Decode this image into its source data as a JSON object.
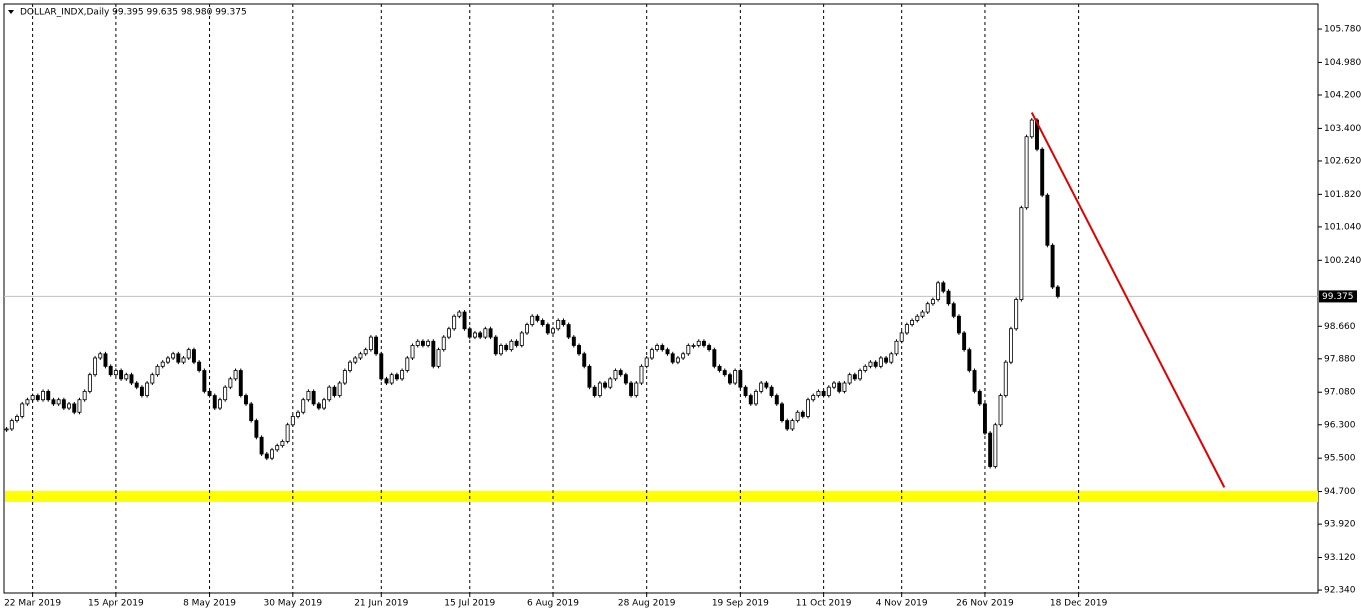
{
  "chart_data": {
    "type": "candlestick",
    "title": "DOLLAR_INDX,Daily  99.395 99.635 98.980 99.375",
    "closes": [
      96.2,
      96.4,
      96.5,
      96.8,
      96.9,
      97.0,
      96.9,
      97.1,
      96.9,
      96.8,
      96.9,
      96.7,
      96.8,
      96.6,
      96.9,
      97.1,
      97.5,
      97.9,
      98.0,
      97.7,
      97.5,
      97.6,
      97.4,
      97.5,
      97.3,
      97.2,
      97.0,
      97.3,
      97.5,
      97.7,
      97.8,
      97.9,
      98.0,
      97.8,
      97.9,
      98.1,
      97.8,
      97.6,
      97.1,
      97.0,
      96.7,
      96.9,
      97.2,
      97.4,
      97.6,
      97.0,
      96.8,
      96.4,
      96.0,
      95.6,
      95.5,
      95.7,
      95.8,
      95.9,
      96.3,
      96.5,
      96.6,
      96.9,
      97.1,
      96.8,
      96.7,
      96.9,
      97.2,
      97.0,
      97.3,
      97.6,
      97.8,
      97.9,
      98.0,
      98.1,
      98.4,
      98.0,
      97.4,
      97.3,
      97.5,
      97.4,
      97.6,
      97.9,
      98.2,
      98.3,
      98.2,
      98.3,
      97.7,
      98.1,
      98.4,
      98.6,
      98.9,
      99.0,
      98.6,
      98.4,
      98.5,
      98.4,
      98.6,
      98.4,
      98.0,
      98.2,
      98.1,
      98.3,
      98.2,
      98.5,
      98.7,
      98.9,
      98.8,
      98.7,
      98.5,
      98.6,
      98.8,
      98.7,
      98.4,
      98.2,
      98.0,
      97.7,
      97.2,
      97.0,
      97.3,
      97.2,
      97.4,
      97.6,
      97.5,
      97.3,
      97.0,
      97.3,
      97.7,
      97.9,
      98.1,
      98.2,
      98.1,
      98.0,
      97.8,
      97.9,
      98.0,
      98.2,
      98.2,
      98.3,
      98.2,
      98.1,
      97.7,
      97.6,
      97.5,
      97.3,
      97.6,
      97.2,
      97.0,
      96.8,
      97.1,
      97.3,
      97.2,
      97.0,
      96.8,
      96.4,
      96.2,
      96.4,
      96.6,
      96.5,
      96.9,
      97.0,
      97.1,
      97.0,
      97.2,
      97.3,
      97.1,
      97.3,
      97.5,
      97.4,
      97.6,
      97.7,
      97.8,
      97.7,
      97.9,
      97.8,
      98.0,
      98.3,
      98.5,
      98.7,
      98.8,
      98.9,
      99.0,
      99.2,
      99.3,
      99.7,
      99.5,
      99.2,
      98.9,
      98.5,
      98.1,
      97.6,
      97.1,
      96.8,
      96.1,
      95.3,
      96.3,
      97.0,
      97.8,
      98.6,
      99.3,
      101.5,
      103.2,
      103.6,
      102.9,
      101.8,
      100.6,
      99.6,
      99.375
    ],
    "xticks": [
      {
        "value": 5,
        "label": "22 Mar 2019"
      },
      {
        "value": 21,
        "label": "15 Apr 2019"
      },
      {
        "value": 39,
        "label": "8 May 2019"
      },
      {
        "value": 55,
        "label": "30 May 2019"
      },
      {
        "value": 72,
        "label": "21 Jun 2019"
      },
      {
        "value": 89,
        "label": "15 Jul 2019"
      },
      {
        "value": 105,
        "label": "6 Aug 2019"
      },
      {
        "value": 123,
        "label": "28 Aug 2019"
      },
      {
        "value": 141,
        "label": "19 Sep 2019"
      },
      {
        "value": 157,
        "label": "11 Oct 2019"
      },
      {
        "value": 172,
        "label": "4 Nov 2019"
      },
      {
        "value": 188,
        "label": "26 Nov 2019"
      },
      {
        "value": 206,
        "label": "18 Dec 2019"
      }
    ],
    "xlim": [
      -0.5,
      252
    ],
    "ylim": [
      92.27,
      106.38
    ],
    "yticks": [
      {
        "value": 105.78,
        "label": "105.780"
      },
      {
        "value": 104.98,
        "label": "104.980"
      },
      {
        "value": 104.2,
        "label": "104.200"
      },
      {
        "value": 103.4,
        "label": "103.400"
      },
      {
        "value": 102.62,
        "label": "102.620"
      },
      {
        "value": 101.82,
        "label": "101.820"
      },
      {
        "value": 101.04,
        "label": "101.040"
      },
      {
        "value": 100.24,
        "label": "100.240"
      },
      {
        "value": 98.66,
        "label": "98.660"
      },
      {
        "value": 97.88,
        "label": "97.880"
      },
      {
        "value": 97.08,
        "label": "97.080"
      },
      {
        "value": 96.3,
        "label": "96.300"
      },
      {
        "value": 95.5,
        "label": "95.500"
      },
      {
        "value": 94.7,
        "label": "94.700"
      },
      {
        "value": 93.92,
        "label": "93.920"
      },
      {
        "value": 93.12,
        "label": "93.120"
      },
      {
        "value": 92.34,
        "label": "92.340"
      }
    ],
    "last_price": {
      "value": 99.375,
      "label": "99.375"
    },
    "zone": {
      "ylim": [
        94.45,
        94.72
      ],
      "color": "#ffff00"
    },
    "trendline": {
      "x": [
        197,
        234
      ],
      "y": [
        103.78,
        94.8
      ],
      "color": "#e00000"
    }
  }
}
